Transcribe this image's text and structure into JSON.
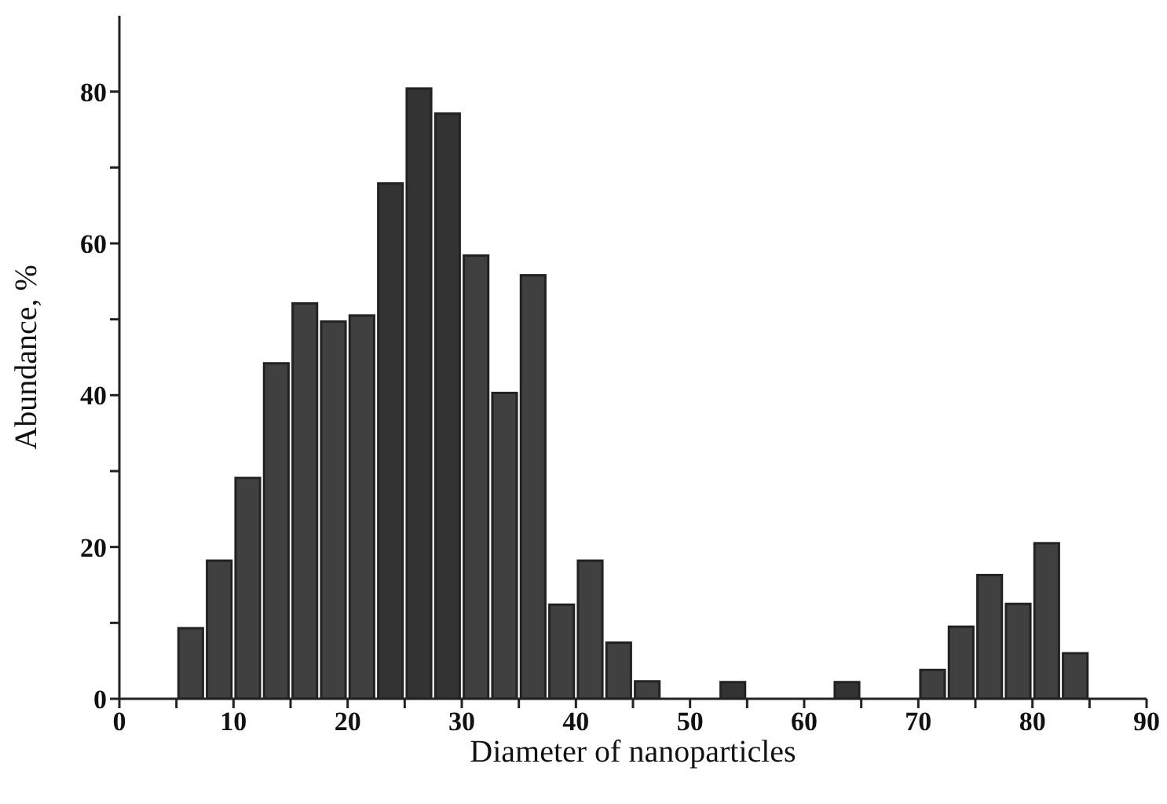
{
  "chart_data": {
    "type": "histogram",
    "xlabel": "Diameter of nanoparticles",
    "ylabel": "Abundance, %",
    "bins": [
      5,
      7.5,
      10,
      12.5,
      15,
      17.5,
      20,
      22.5,
      25,
      27.5,
      30,
      32.5,
      35,
      37.5,
      40,
      42.5,
      45,
      47.5,
      50,
      52.5,
      55,
      57.5,
      60,
      62.5,
      65,
      67.5,
      70,
      72.5,
      75,
      77.5,
      80,
      82.5,
      85
    ],
    "values": [
      9.3,
      18.2,
      29.1,
      44.2,
      52.1,
      49.7,
      50.5,
      67.9,
      80.4,
      77.1,
      58.4,
      40.3,
      55.8,
      12.4,
      18.2,
      7.4,
      2.3,
      0,
      0,
      2.2,
      0,
      0,
      0,
      2.2,
      0,
      0,
      3.8,
      9.5,
      16.3,
      12.5,
      20.5,
      6.0
    ],
    "colors": [
      "#404040",
      "#404040",
      "#404040",
      "#404040",
      "#404040",
      "#404040",
      "#404040",
      "#333333",
      "#333333",
      "#333333",
      "#404040",
      "#404040",
      "#404040",
      "#404040",
      "#404040",
      "#404040",
      "#404040",
      "#404040",
      "#404040",
      "#333333",
      "#404040",
      "#404040",
      "#404040",
      "#333333",
      "#404040",
      "#404040",
      "#404040",
      "#404040",
      "#404040",
      "#404040",
      "#404040",
      "#404040"
    ],
    "xlim": [
      0,
      90
    ],
    "xticks": [
      0,
      {
        "value": 5,
        "label": null
      },
      10,
      {
        "value": 15,
        "label": null
      },
      20,
      {
        "value": 25,
        "label": null
      },
      30,
      {
        "value": 35,
        "label": null
      },
      40,
      {
        "value": 45,
        "label": null
      },
      50,
      {
        "value": 55,
        "label": null
      },
      60,
      {
        "value": 65,
        "label": null
      },
      70,
      {
        "value": 75,
        "label": null
      },
      80,
      {
        "value": 85,
        "label": null
      },
      90
    ],
    "ylim": [
      0,
      90
    ],
    "yticks": [
      0,
      {
        "value": 10,
        "label": null
      },
      20,
      {
        "value": 30,
        "label": null
      },
      40,
      {
        "value": 50,
        "label": null
      },
      60,
      {
        "value": 70,
        "label": null
      },
      80
    ],
    "grid": false,
    "legend": false
  }
}
